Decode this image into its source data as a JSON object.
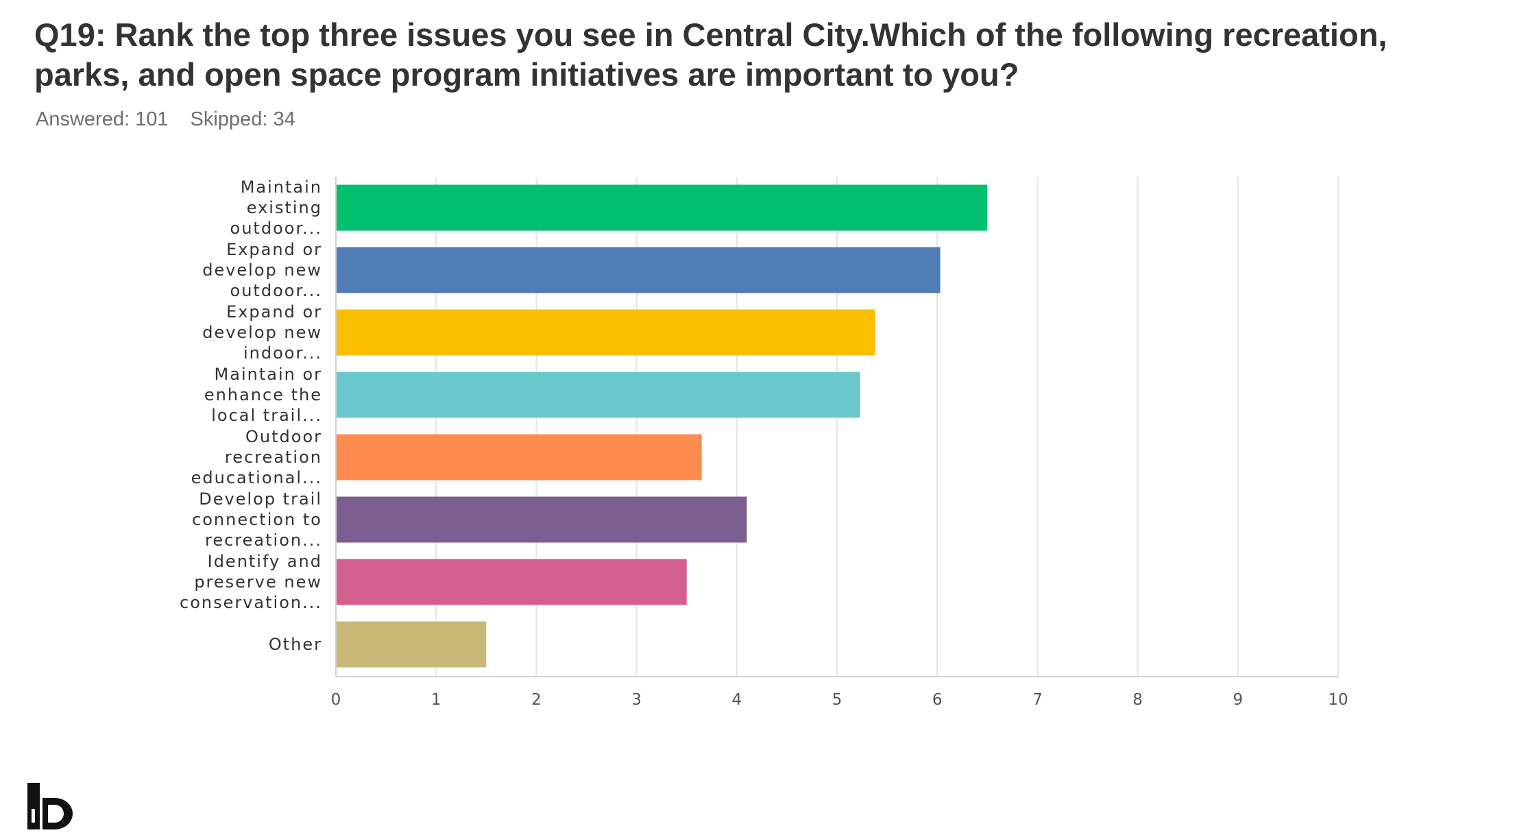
{
  "header": {
    "title": "Q19: Rank the top three issues you see in Central City.Which of the following recreation, parks, and open space program initiatives are important to you?",
    "answered": "Answered: 101",
    "skipped": "Skipped: 34"
  },
  "logo": {
    "icon": "ib-logo-icon",
    "color": "#111111"
  },
  "chart_data": {
    "type": "bar",
    "orientation": "horizontal",
    "categories": [
      [
        "Maintain",
        "existing",
        "outdoor..."
      ],
      [
        "Expand or",
        "develop new",
        "outdoor..."
      ],
      [
        "Expand or",
        "develop new",
        "indoor..."
      ],
      [
        "Maintain or",
        "enhance the",
        "local trail..."
      ],
      [
        "Outdoor",
        "recreation",
        "educational..."
      ],
      [
        "Develop trail",
        "connection to",
        "recreation..."
      ],
      [
        "Identify and",
        "preserve new",
        "conservation..."
      ],
      [
        "Other"
      ]
    ],
    "values": [
      6.5,
      6.03,
      5.38,
      5.23,
      3.65,
      4.1,
      3.5,
      1.5
    ],
    "colors": [
      "#00bf6f",
      "#507cb6",
      "#f9be00",
      "#6bc8cd",
      "#ff8b4f",
      "#7d5e90",
      "#d25f90",
      "#c9b778"
    ],
    "xlim": [
      0,
      10
    ],
    "xticks": [
      0,
      1,
      2,
      3,
      4,
      5,
      6,
      7,
      8,
      9,
      10
    ],
    "grid": true,
    "legend": "none",
    "title": "",
    "xlabel": "",
    "ylabel": ""
  }
}
